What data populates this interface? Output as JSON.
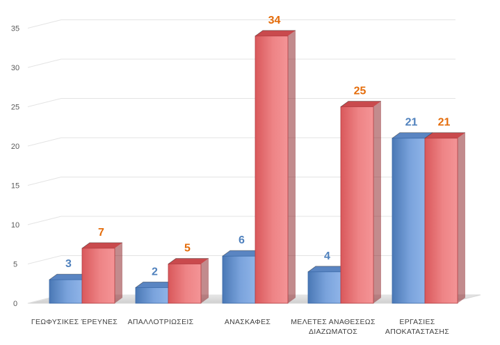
{
  "chart_data": {
    "type": "bar",
    "style": "3d-clustered-column",
    "categories": [
      [
        "ΓΕΩΦΥΣΙΚΕΣ ΈΡΕΥΝΕΣ"
      ],
      [
        "ΑΠΑΛΛΟΤΡΙΩΣΕΙΣ"
      ],
      [
        "ΑΝΑΣΚΑΦΕΣ"
      ],
      [
        "ΜΕΛΕΤΕΣ ΑΝΑΘΕΣΕΩΣ",
        "ΔΙΑΖΩΜΑΤΟΣ"
      ],
      [
        "ΕΡΓΑΣΙΕΣ",
        "ΑΠΟΚΑΤΑΣΤΑΣΗΣ"
      ]
    ],
    "series": [
      {
        "values": [
          3,
          2,
          6,
          4,
          21
        ],
        "color": "#4f81bd",
        "label_color": "#4f81bd"
      },
      {
        "values": [
          7,
          5,
          34,
          25,
          21
        ],
        "color": "#e05a5d",
        "label_color": "#e46c0a"
      }
    ],
    "data_labels": {
      "series0": [
        "3",
        "2",
        "6",
        "4",
        "21"
      ],
      "series1": [
        "7",
        "5",
        "34",
        "25",
        "21"
      ]
    },
    "yticks": [
      "0",
      "5",
      "10",
      "15",
      "20",
      "25",
      "30",
      "35"
    ],
    "ylim": [
      0,
      35
    ],
    "grid": true,
    "legend": "none",
    "title": "",
    "xlabel": "",
    "ylabel": ""
  }
}
